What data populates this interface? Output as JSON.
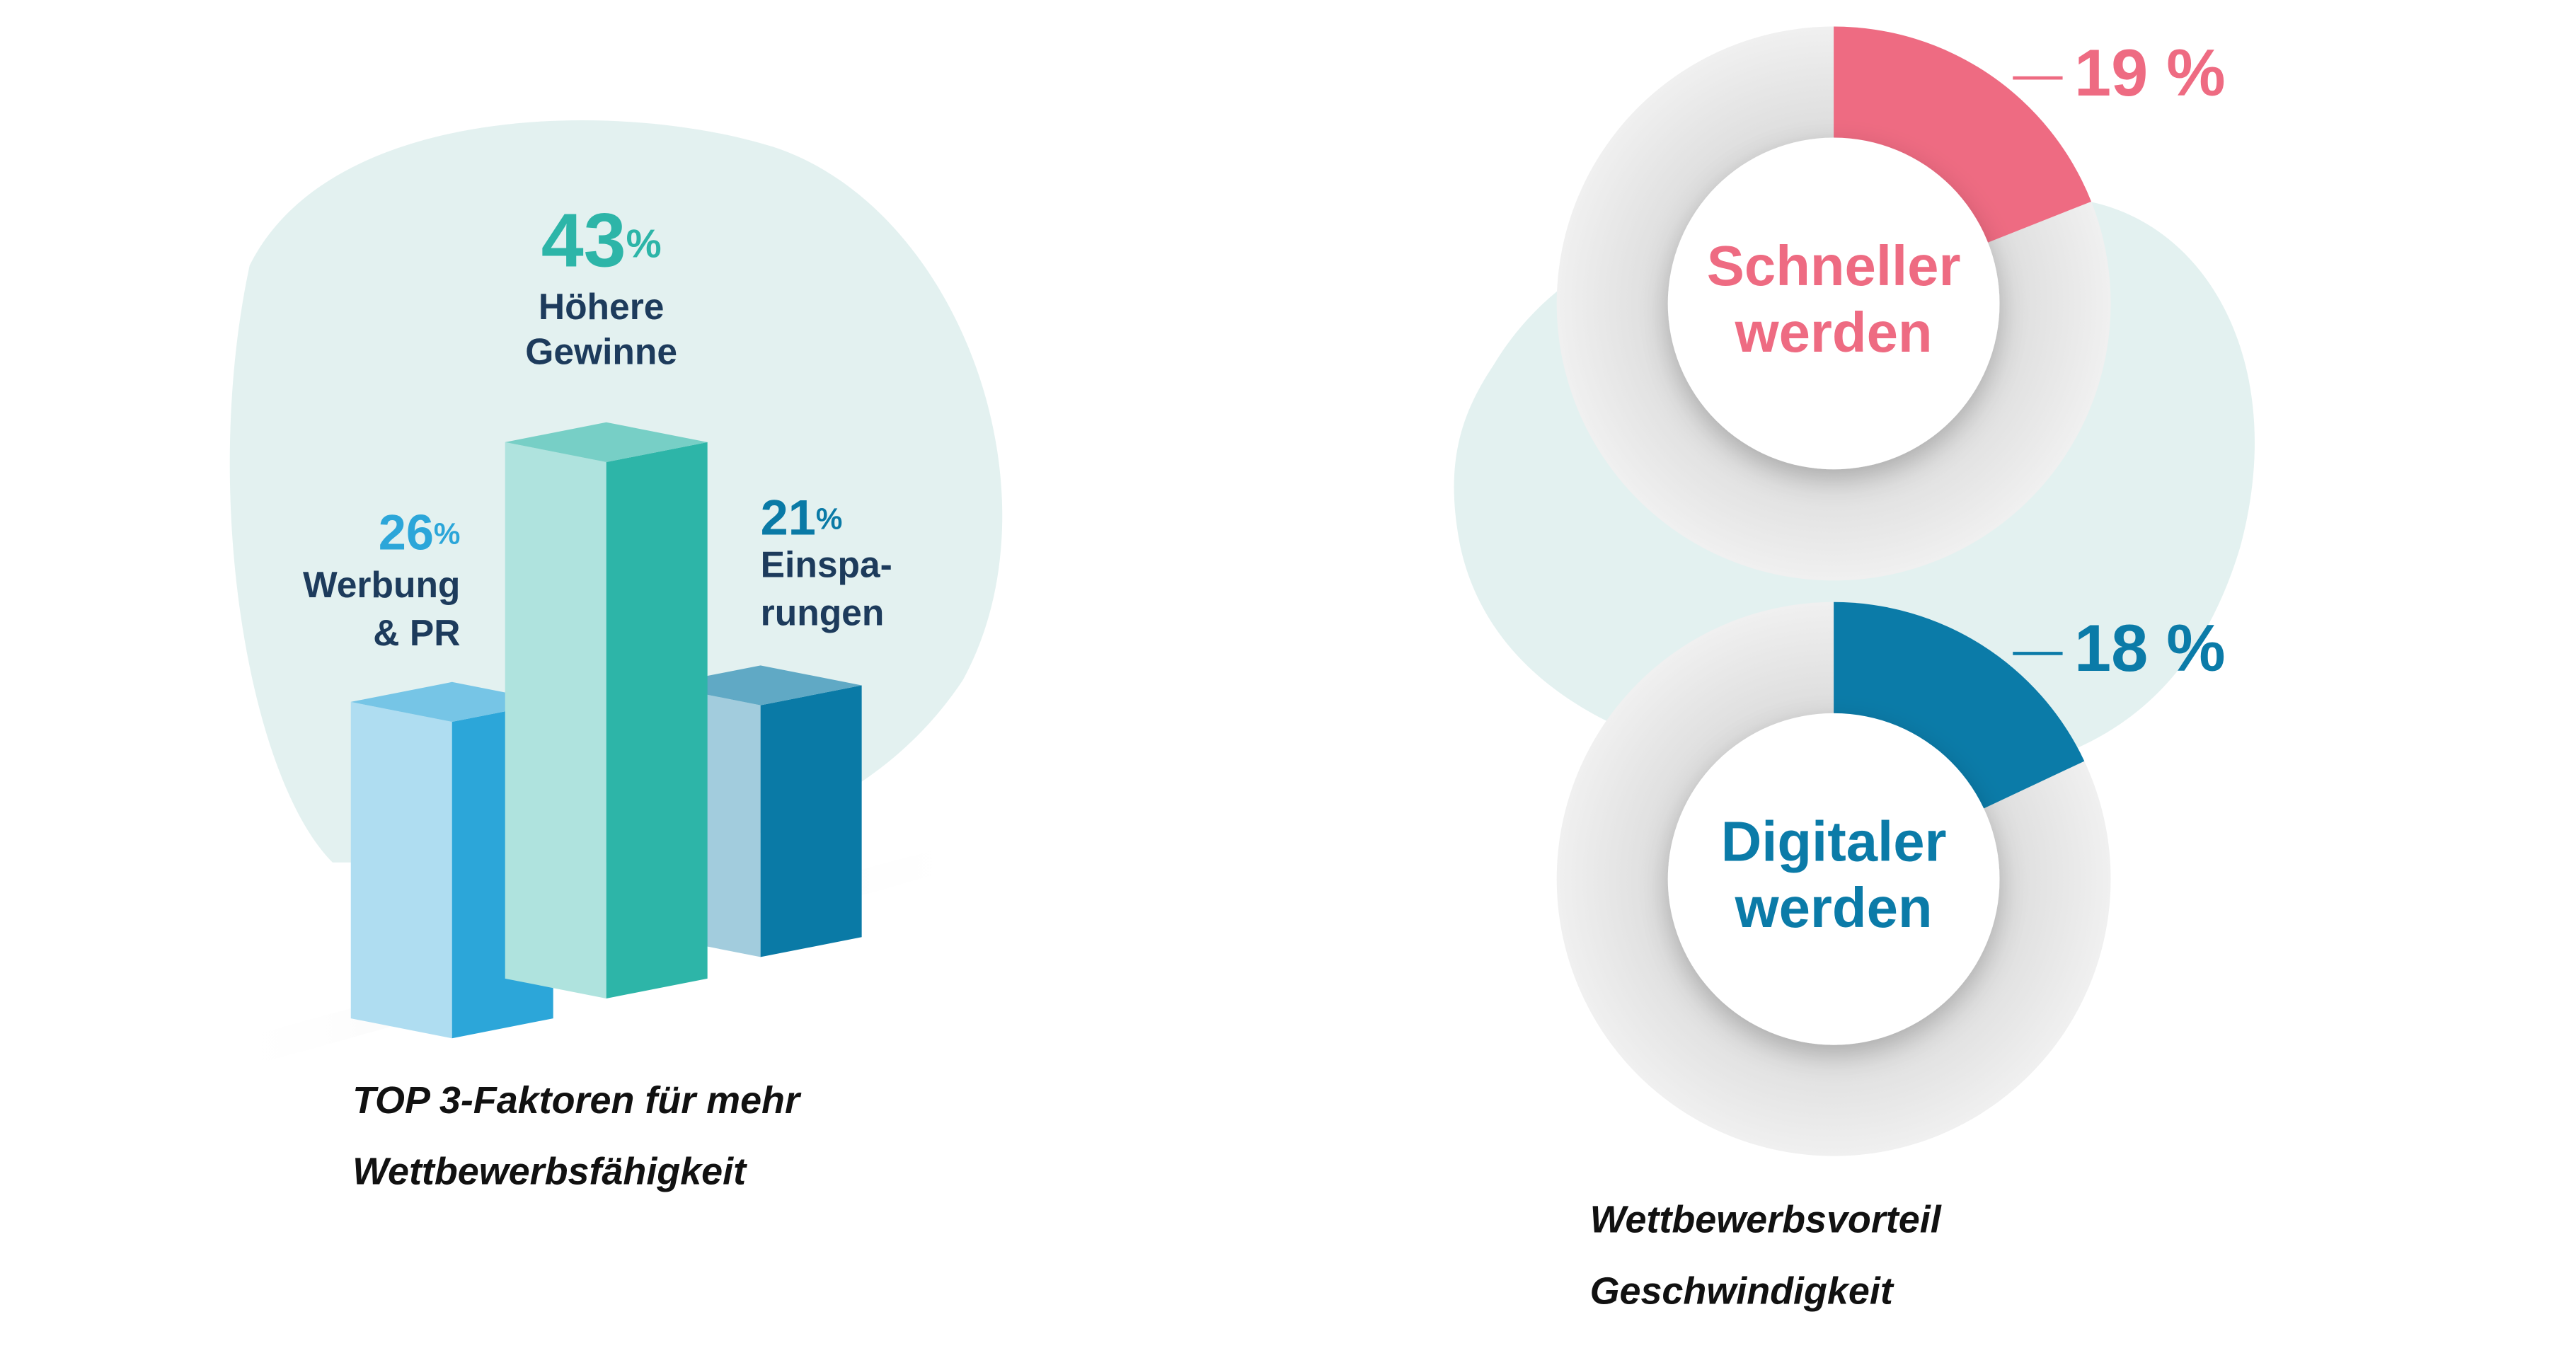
{
  "chart_data": [
    {
      "type": "bar3d",
      "title": [
        "TOP 3-Faktoren für mehr",
        "Wettbewerbsfähigkeit"
      ],
      "categories": [
        [
          "Werbung",
          "& PR"
        ],
        [
          "Höhere",
          "Gewinne"
        ],
        [
          "Einspa-",
          "rungen"
        ]
      ],
      "values": [
        26,
        43,
        21
      ],
      "value_labels": [
        "26%",
        "43%",
        "21%"
      ],
      "colors": [
        "#2ca6d9",
        "#2db5a8",
        "#0a7aa6"
      ]
    },
    {
      "type": "donut",
      "title": [
        "Wettbewerbsvorteil",
        "Geschwindigkeit"
      ],
      "categories": [
        [
          "Schneller",
          "werden"
        ],
        [
          "Digitaler",
          "werden"
        ]
      ],
      "values": [
        19,
        18
      ],
      "value_labels": [
        "19 %",
        "18 %"
      ],
      "colors": [
        "#ee6b82",
        "#0b7ba8"
      ]
    }
  ]
}
